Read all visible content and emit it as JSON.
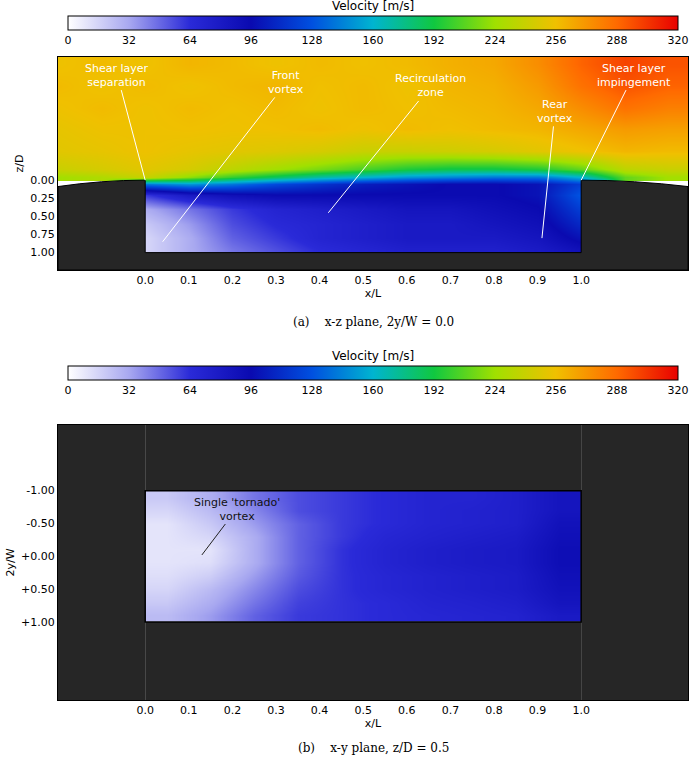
{
  "chart_data": [
    {
      "type": "heatmap",
      "label": "(a)",
      "caption": "x-z plane, 2y/W = 0.0",
      "x_label": "x/L",
      "y_label": "z/D",
      "xlim": [
        -0.2,
        1.245
      ],
      "ylim": [
        1.24,
        -1.7
      ],
      "xticks": [
        {
          "value": 0,
          "label": "0.0"
        },
        0.1,
        0.2,
        0.3,
        0.4,
        0.5,
        0.6,
        0.7,
        0.8,
        0.9,
        {
          "value": 1,
          "label": "1.0"
        }
      ],
      "yticks": [
        {
          "value": 0,
          "label": "0.00"
        },
        0.25,
        {
          "value": 0.5,
          "label": "0.50"
        },
        0.75,
        {
          "value": 1,
          "label": "1.00"
        }
      ],
      "cavity": {
        "x": [
          0,
          1
        ],
        "y": [
          0,
          1
        ]
      },
      "colorbar": {
        "label": "Velocity [m/s]",
        "range": [
          0,
          320
        ],
        "ticks": [
          0,
          32,
          64,
          96,
          128,
          160,
          192,
          224,
          256,
          288,
          320
        ]
      },
      "x": [
        -0.2,
        -0.1,
        0,
        0.1,
        0.2,
        0.3,
        0.4,
        0.5,
        0.6,
        0.7,
        0.8,
        0.9,
        1.0,
        1.1,
        1.2
      ],
      "y": [
        -1.6,
        -1.3,
        -1.0,
        -0.7,
        -0.4,
        -0.15,
        -0.05,
        0.05,
        0.2,
        0.4,
        0.6,
        0.8,
        0.95
      ],
      "cells": [
        [
          255,
          258,
          255,
          260,
          258,
          255,
          258,
          256,
          258,
          262,
          265,
          275,
          290,
          300,
          295
        ],
        [
          258,
          255,
          258,
          255,
          258,
          260,
          256,
          258,
          255,
          260,
          262,
          270,
          285,
          295,
          290
        ],
        [
          255,
          258,
          255,
          258,
          256,
          258,
          255,
          258,
          256,
          258,
          260,
          265,
          275,
          285,
          280
        ],
        [
          252,
          255,
          255,
          256,
          255,
          256,
          258,
          255,
          258,
          256,
          258,
          260,
          265,
          270,
          268
        ],
        [
          250,
          252,
          255,
          252,
          250,
          248,
          245,
          240,
          240,
          242,
          245,
          250,
          255,
          260,
          258
        ],
        [
          240,
          245,
          250,
          245,
          235,
          225,
          215,
          205,
          195,
          190,
          190,
          195,
          210,
          235,
          240
        ],
        [
          225,
          230,
          240,
          220,
          200,
          185,
          170,
          160,
          150,
          145,
          140,
          140,
          160,
          210,
          225
        ],
        [
          null,
          null,
          140,
          150,
          140,
          125,
          115,
          105,
          100,
          95,
          95,
          100,
          120,
          null,
          null
        ],
        [
          null,
          null,
          60,
          80,
          90,
          95,
          95,
          95,
          95,
          95,
          95,
          100,
          130,
          null,
          null
        ],
        [
          null,
          null,
          30,
          45,
          60,
          70,
          75,
          80,
          85,
          85,
          90,
          95,
          120,
          null,
          null
        ],
        [
          null,
          null,
          20,
          35,
          55,
          65,
          70,
          75,
          80,
          80,
          85,
          90,
          110,
          null,
          null
        ],
        [
          null,
          null,
          15,
          30,
          50,
          60,
          70,
          75,
          80,
          80,
          80,
          85,
          100,
          null,
          null
        ],
        [
          null,
          null,
          15,
          30,
          45,
          55,
          65,
          70,
          75,
          75,
          75,
          80,
          90,
          null,
          null
        ]
      ],
      "annotations": [
        {
          "text": "Shear layer separation",
          "x": 0.0,
          "y": 0.0,
          "ax": -0.064,
          "ay": -1.45
        },
        {
          "text": "Front vortex",
          "x": 0.04,
          "y": 0.85,
          "ax": 0.324,
          "ay": -1.35
        },
        {
          "text": "Recirculation zone",
          "x": 0.42,
          "y": 0.45,
          "ax": 0.655,
          "ay": -1.3
        },
        {
          "text": "Rear vortex",
          "x": 0.91,
          "y": 0.8,
          "ax": 0.94,
          "ay": -0.95
        },
        {
          "text": "Shear layer impingement",
          "x": 1.0,
          "y": 0.0,
          "ax": 1.12,
          "ay": -1.45
        }
      ]
    },
    {
      "type": "heatmap",
      "label": "(b)",
      "caption": "x-y plane, z/D = 0.5",
      "x_label": "x/L",
      "y_label": "2y/W",
      "xlim": [
        -0.2,
        1.245
      ],
      "ylim": [
        2.19,
        -2.0
      ],
      "xticks": [
        {
          "value": 0,
          "label": "0.0"
        },
        0.1,
        0.2,
        0.3,
        0.4,
        0.5,
        0.6,
        0.7,
        0.8,
        0.9,
        {
          "value": 1,
          "label": "1.0"
        }
      ],
      "yticks": [
        {
          "value": -1,
          "label": "-1.00"
        },
        {
          "value": -0.5,
          "label": "-0.50"
        },
        {
          "value": 0,
          "label": "+0.00"
        },
        {
          "value": 0.5,
          "label": "+0.50"
        },
        {
          "value": 1,
          "label": "+1.00"
        }
      ],
      "cavity": {
        "x": [
          0,
          1
        ],
        "y": [
          -1,
          1
        ]
      },
      "colorbar": {
        "label": "Velocity [m/s]",
        "range": [
          0,
          320
        ],
        "ticks": [
          0,
          32,
          64,
          96,
          128,
          160,
          192,
          224,
          256,
          288,
          320
        ]
      },
      "x": [
        0.05,
        0.15,
        0.25,
        0.35,
        0.45,
        0.55,
        0.65,
        0.75,
        0.85,
        0.95
      ],
      "y": [
        -0.9,
        -0.7,
        -0.5,
        -0.3,
        -0.1,
        0.1,
        0.3,
        0.5,
        0.7,
        0.9
      ],
      "cells": [
        [
          20,
          30,
          45,
          55,
          60,
          65,
          70,
          70,
          75,
          85
        ],
        [
          15,
          25,
          40,
          55,
          60,
          65,
          70,
          72,
          75,
          85
        ],
        [
          10,
          20,
          35,
          50,
          60,
          65,
          70,
          72,
          75,
          88
        ],
        [
          10,
          15,
          30,
          50,
          60,
          68,
          72,
          75,
          78,
          90
        ],
        [
          10,
          10,
          30,
          50,
          62,
          70,
          75,
          78,
          80,
          92
        ],
        [
          10,
          12,
          30,
          50,
          62,
          70,
          75,
          78,
          80,
          92
        ],
        [
          12,
          18,
          35,
          52,
          62,
          68,
          72,
          75,
          78,
          90
        ],
        [
          15,
          25,
          40,
          55,
          62,
          68,
          72,
          75,
          78,
          88
        ],
        [
          20,
          30,
          45,
          58,
          62,
          65,
          70,
          72,
          75,
          85
        ],
        [
          25,
          35,
          50,
          60,
          62,
          65,
          68,
          70,
          72,
          80
        ]
      ],
      "annotations": [
        {
          "text": "Single 'tornado' vortex",
          "x": 0.13,
          "y": -0.02,
          "ax": 0.21,
          "ay": -0.72
        }
      ]
    }
  ]
}
